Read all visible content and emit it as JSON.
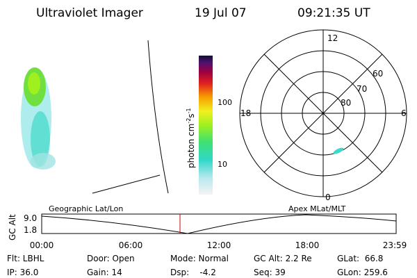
{
  "header": {
    "title": "Ultraviolet Imager",
    "date": "19 Jul 07",
    "time": "09:21:35 UT"
  },
  "colorbar": {
    "label": [
      "photon cm",
      "-2",
      "s",
      "-1"
    ],
    "ticks": [
      "100",
      "10"
    ]
  },
  "polar": {
    "mlt_labels": [
      "12",
      "18",
      "6",
      "0"
    ],
    "lat_labels": [
      "60",
      "70",
      "80"
    ]
  },
  "timeline": {
    "axis_label": "GC Alt",
    "y_labels": [
      "9.0",
      "1.8"
    ],
    "left_title": "Geographic Lat/Lon",
    "right_title": "Apex MLat/MLT",
    "times": [
      "00:00",
      "06:00",
      "12:00",
      "18:00",
      "23:59"
    ]
  },
  "footer": {
    "rows": [
      [
        "Flt: LBHL",
        "Door: Open",
        "Mode: Normal",
        "GC Alt: 2.2 Re",
        "GLat:  66.8"
      ],
      [
        "IP: 36.0",
        "Gain: 14",
        "Dsp:    -4.2",
        "Seq: 39",
        "GLon: 259.6"
      ]
    ]
  }
}
